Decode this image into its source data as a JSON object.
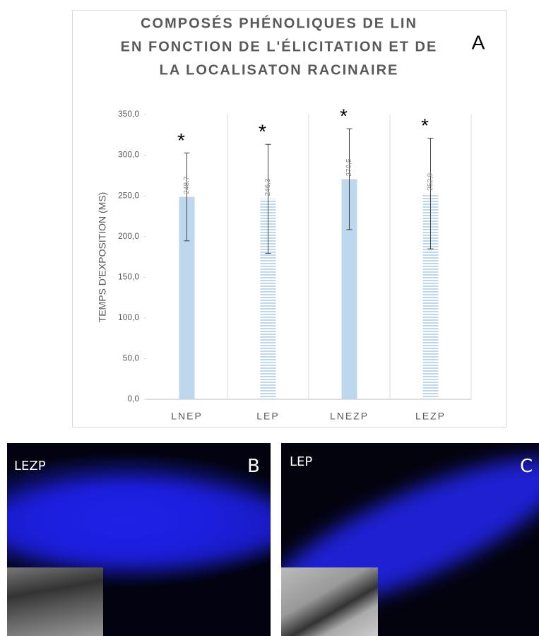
{
  "chart_data": {
    "type": "bar",
    "title": [
      "COMPOSÉS PHÉNOLIQUES DE LIN",
      "EN FONCTION DE L'ÉLICITATION ET DE",
      "LA LOCALISATON RACINAIRE"
    ],
    "panel_label": "A",
    "y_label": "TEMPS D'EXPOSITION (MS)",
    "categories": [
      "LNEP",
      "LEP",
      "LNEZP",
      "LEZP"
    ],
    "values": [
      248.7,
      246.3,
      270.5,
      252.9
    ],
    "value_labels": [
      "248,7",
      "246,3",
      "270,5",
      "252,9"
    ],
    "errors": [
      54,
      67,
      62,
      68
    ],
    "patterns": [
      "solid",
      "striped",
      "solid",
      "striped"
    ],
    "color": "#bdd7ee",
    "annotations": [
      "*",
      "*",
      "*",
      "*"
    ],
    "ylim": [
      0,
      350
    ],
    "yticks": [
      {
        "value": 0,
        "label": "0,0"
      },
      {
        "value": 50,
        "label": "50,0"
      },
      {
        "value": 100,
        "label": "100,0"
      },
      {
        "value": 150,
        "label": "150,0"
      },
      {
        "value": 200,
        "label": "200,0"
      },
      {
        "value": 250,
        "label": "250,0"
      },
      {
        "value": 300,
        "label": "300,0"
      },
      {
        "value": 350,
        "label": "350,0"
      }
    ]
  },
  "panels": [
    {
      "label": "B",
      "caption": "LEZP"
    },
    {
      "label": "C",
      "caption": "LEP"
    }
  ]
}
